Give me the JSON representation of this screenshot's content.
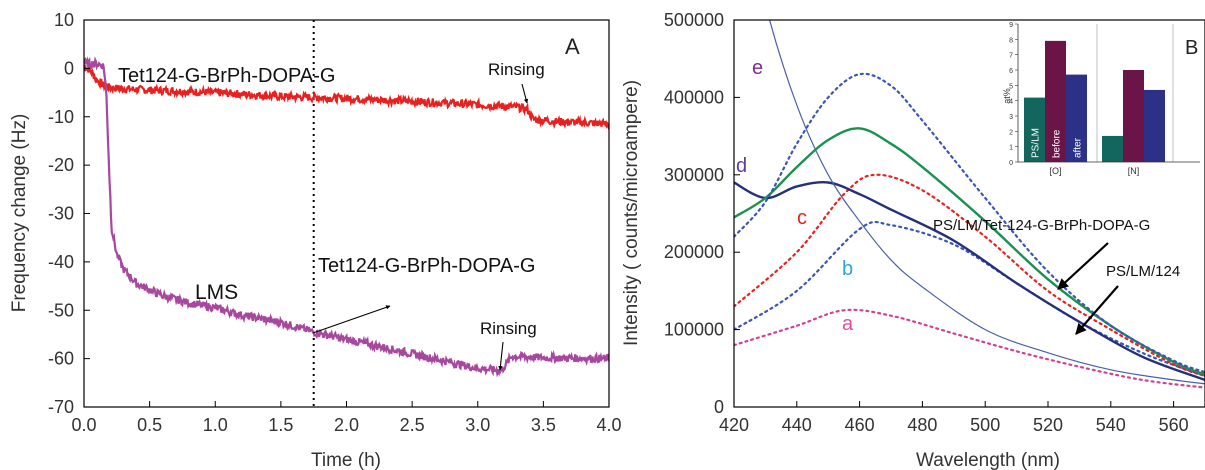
{
  "chart_data": [
    {
      "type": "line",
      "panel_label": "A",
      "xlabel": "Time (h)",
      "ylabel": "Frequency change (Hz)",
      "xlim": [
        0,
        4
      ],
      "ylim": [
        -70,
        10
      ],
      "x_ticks": [
        "0.0",
        "0.5",
        "1.0",
        "1.5",
        "2.0",
        "2.5",
        "3.0",
        "3.5",
        "4.0"
      ],
      "y_ticks": [
        "10",
        "0",
        "-10",
        "-20",
        "-30",
        "-40",
        "-50",
        "-60",
        "-70"
      ],
      "grid": false,
      "vline_x": 1.75,
      "series": [
        {
          "name": "Tet124-G-BrPh-DOPA-G",
          "color": "#e8201f",
          "x": [
            0,
            0.05,
            0.1,
            0.15,
            0.2,
            0.3,
            0.5,
            1.0,
            1.5,
            2.0,
            2.5,
            3.0,
            3.3,
            3.38,
            3.42,
            3.6,
            3.8,
            4.0
          ],
          "y": [
            0.5,
            -0.5,
            -2.5,
            -3.5,
            -4,
            -4.2,
            -4.5,
            -5,
            -5.8,
            -6.2,
            -6.8,
            -7.5,
            -8,
            -8.5,
            -10.5,
            -11,
            -11.2,
            -11.5
          ]
        },
        {
          "name": "LMS",
          "color": "#a8479e",
          "x": [
            0,
            0.1,
            0.15,
            0.17,
            0.19,
            0.21,
            0.25,
            0.3,
            0.4,
            0.6,
            0.8,
            1.0,
            1.2,
            1.5,
            1.75,
            2.0,
            2.5,
            3.0,
            3.18,
            3.22,
            3.26,
            3.5,
            4.0
          ],
          "y": [
            1,
            1,
            0.5,
            -5,
            -20,
            -33,
            -38.5,
            -41.5,
            -44.5,
            -47,
            -48.5,
            -49.5,
            -51,
            -52.5,
            -54.5,
            -56,
            -59,
            -62,
            -62.5,
            -61,
            -59.5,
            -59.8,
            -60
          ]
        }
      ],
      "annotations": [
        "Tet124-G-BrPh-DOPA-G",
        "LMS",
        "Rinsing",
        "Rinsing",
        "Tet124-G-BrPh-DOPA-G"
      ]
    },
    {
      "type": "line",
      "panel_label": "B",
      "xlabel": "Wavelength (nm)",
      "ylabel": "Intensity ( counts/microampere)",
      "xlim": [
        420,
        570
      ],
      "ylim": [
        0,
        500000
      ],
      "x_ticks": [
        "420",
        "440",
        "460",
        "480",
        "500",
        "520",
        "540",
        "560"
      ],
      "y_ticks": [
        "0",
        "100000",
        "200000",
        "300000",
        "400000",
        "500000"
      ],
      "grid": false,
      "series": [
        {
          "label": "a",
          "color": "#d0409a",
          "style": "dotted",
          "x": [
            420,
            440,
            455,
            470,
            490,
            510,
            530,
            550,
            570
          ],
          "y": [
            80000,
            105000,
            125000,
            118000,
            95000,
            72000,
            52000,
            35000,
            25000
          ]
        },
        {
          "label": "b",
          "color": "#3a56b8",
          "style": "dotted",
          "x": [
            420,
            440,
            460,
            470,
            490,
            510,
            530,
            550,
            570
          ],
          "y": [
            100000,
            150000,
            230000,
            235000,
            210000,
            160000,
            110000,
            70000,
            40000
          ]
        },
        {
          "label": "c",
          "color": "#e8201f",
          "style": "dotted",
          "x": [
            420,
            440,
            455,
            465,
            480,
            500,
            520,
            540,
            560,
            570
          ],
          "y": [
            130000,
            200000,
            275000,
            300000,
            280000,
            220000,
            150000,
            100000,
            55000,
            40000
          ]
        },
        {
          "label": "d",
          "color": "#25307a",
          "style": "solid",
          "x": [
            420,
            430,
            440,
            450,
            460,
            470,
            490,
            510,
            530,
            550,
            570
          ],
          "y": [
            290000,
            270000,
            285000,
            290000,
            275000,
            255000,
            215000,
            160000,
            110000,
            65000,
            35000
          ]
        },
        {
          "label": "e",
          "color": "#4a5fa8",
          "style": "solid",
          "x": [
            420,
            430,
            440,
            450,
            460,
            470,
            480,
            500,
            520,
            540,
            560,
            570
          ],
          "y": [
            700000,
            520000,
            390000,
            300000,
            240000,
            190000,
            155000,
            100000,
            70000,
            48000,
            35000,
            30000
          ]
        },
        {
          "name": "PS/LM/Tet-124-G-BrPh-DOPA-G",
          "color": "#1a9150",
          "style": "solid",
          "x": [
            420,
            430,
            440,
            450,
            460,
            470,
            480,
            500,
            520,
            540,
            560,
            570
          ],
          "y": [
            245000,
            270000,
            310000,
            345000,
            360000,
            340000,
            310000,
            240000,
            165000,
            105000,
            58000,
            42000
          ]
        },
        {
          "name": "dotted-peak",
          "color": "#3a56b8",
          "style": "dotted",
          "x": [
            420,
            430,
            440,
            450,
            460,
            470,
            480,
            500,
            520,
            540,
            560,
            570
          ],
          "y": [
            220000,
            265000,
            340000,
            400000,
            430000,
            415000,
            370000,
            270000,
            175000,
            105000,
            60000,
            45000
          ]
        }
      ],
      "curve_labels": [
        "a",
        "b",
        "c",
        "d",
        "e"
      ],
      "annotations": [
        "PS/LM/Tet-124-G-BrPh-DOPA-G",
        "PS/LM/124"
      ]
    },
    {
      "type": "bar",
      "ylabel": "at%",
      "categories": [
        "[O]",
        "[N]"
      ],
      "ylim": [
        0,
        9
      ],
      "y_ticks": [
        "0",
        "1",
        "2",
        "3",
        "4",
        "5",
        "6",
        "7",
        "8",
        "9"
      ],
      "series": [
        {
          "name": "PS/LM",
          "color": "#12665e",
          "values": [
            4.2,
            1.7
          ]
        },
        {
          "name": "before",
          "color": "#6b1448",
          "values": [
            7.9,
            6.0
          ]
        },
        {
          "name": "after",
          "color": "#2c3187",
          "values": [
            5.7,
            4.7
          ]
        }
      ]
    }
  ],
  "labels": {
    "a_title": "Tet124-G-BrPh-DOPA-G",
    "a_lms": "LMS",
    "a_rinse1": "Rinsing",
    "a_rinse2": "Rinsing",
    "a_vline_label": "Tet124-G-BrPh-DOPA-G",
    "b_arrow1": "PS/LM/Tet-124-G-BrPh-DOPA-G",
    "b_arrow2": "PS/LM/124"
  }
}
